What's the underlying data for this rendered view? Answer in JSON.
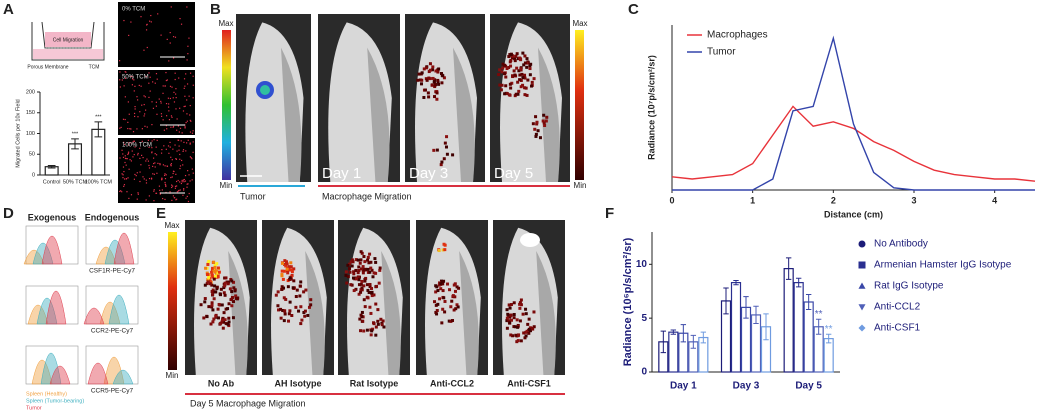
{
  "panels": {
    "letters": [
      "A",
      "B",
      "C",
      "D",
      "E",
      "F"
    ]
  },
  "panel_a": {
    "schematic": [
      "Cell Migration",
      "Porous Membrane",
      "TCM"
    ],
    "images": [
      "0% TCM",
      "50% TCM",
      "100% TCM"
    ]
  },
  "panel_b": {
    "scale": [
      "Max",
      "Min"
    ],
    "days": [
      "Day 1",
      "Day 3",
      "Day 5"
    ],
    "groups": [
      "Tumor",
      "Macrophage Migration"
    ]
  },
  "panel_d": {
    "columns": [
      "Exogenous",
      "Endogenous"
    ],
    "markers": [
      "CSF1R-PE-Cy7",
      "CCR2-PE-Cy7",
      "CCR5-PE-Cy7"
    ],
    "legend": [
      {
        "name": "Spleen (Healthy)",
        "color": "#f0a040"
      },
      {
        "name": "Spleen (Tumor-bearing)",
        "color": "#40b0c0"
      },
      {
        "name": "Tumor",
        "color": "#e04050"
      }
    ]
  },
  "panel_e": {
    "scale": [
      "Max",
      "Min"
    ],
    "groups": [
      "No Ab",
      "AH Isotype",
      "Rat Isotype",
      "Anti-CCL2",
      "Anti-CSF1"
    ],
    "caption": "Day 5 Macrophage Migration"
  },
  "chart_data": [
    {
      "type": "bar",
      "ylabel": "Migrated Cells per 10x Field",
      "categories": [
        "Control",
        "50% TCM",
        "100% TCM"
      ],
      "values": [
        20,
        75,
        110
      ],
      "errors": [
        3,
        12,
        18
      ],
      "value_annotations": [
        null,
        "***",
        "***"
      ],
      "color": "#222222",
      "ylim": [
        0,
        200
      ],
      "yticks": [
        0,
        50,
        100,
        150,
        200
      ]
    },
    {
      "type": "line",
      "xlabel": "Distance (cm)",
      "ylabel": "Radiance (10⁷p/s/cm²/sr)",
      "x": [
        0,
        0.25,
        0.5,
        0.75,
        1,
        1.25,
        1.5,
        1.75,
        2,
        2.25,
        2.5,
        2.75,
        3,
        3.25,
        3.5,
        3.75,
        4,
        4.25,
        4.5
      ],
      "series": [
        {
          "name": "Macrophages",
          "color": "#e8333a",
          "values": [
            0.6,
            0.5,
            0.6,
            0.7,
            1.2,
            2.5,
            3.8,
            2.9,
            3.1,
            2.8,
            2.2,
            1.8,
            1.3,
            0.9,
            0.7,
            0.6,
            0.5,
            0.5,
            0.4
          ]
        },
        {
          "name": "Tumor",
          "color": "#3344aa",
          "values": [
            0,
            0,
            0,
            0,
            0,
            0.5,
            3.6,
            3.8,
            6.9,
            3.0,
            0.8,
            0.1,
            0,
            0,
            0,
            0,
            0,
            0,
            0
          ]
        }
      ],
      "xlim": [
        0,
        4.5
      ],
      "xticks": [
        0,
        1,
        2,
        3,
        4
      ],
      "ylim": [
        0,
        7.5
      ],
      "legend": "top-left"
    },
    {
      "type": "bar",
      "ylabel": "Radiance (10⁶p/s/cm²/sr)",
      "categories": [
        "Day 1",
        "Day 3",
        "Day 5"
      ],
      "series": [
        {
          "name": "No Antibody",
          "color": "#1c1c78",
          "marker": "circle",
          "values": [
            2.8,
            6.6,
            9.6
          ],
          "errors": [
            1.0,
            1.2,
            1.0
          ]
        },
        {
          "name": "Armenian Hamster IgG Isotype",
          "color": "#2a2f90",
          "marker": "square",
          "values": [
            3.7,
            8.3,
            8.3
          ],
          "errors": [
            0.2,
            0.2,
            0.4
          ]
        },
        {
          "name": "Rat IgG Isotype",
          "color": "#3a48a8",
          "marker": "triangle-up",
          "values": [
            3.6,
            6.0,
            6.5
          ],
          "errors": [
            0.8,
            1.0,
            0.7
          ]
        },
        {
          "name": "Anti-CCL2",
          "color": "#5060b8",
          "marker": "triangle-down",
          "values": [
            2.8,
            5.3,
            4.2
          ],
          "errors": [
            0.6,
            0.8,
            0.7
          ],
          "value_annotations": [
            null,
            null,
            "**"
          ]
        },
        {
          "name": "Anti-CSF1",
          "color": "#6f9be0",
          "marker": "diamond",
          "values": [
            3.2,
            4.2,
            3.1
          ],
          "errors": [
            0.5,
            1.2,
            0.4
          ],
          "value_annotations": [
            null,
            null,
            "**"
          ]
        }
      ],
      "ylim": [
        0,
        13
      ],
      "yticks": [
        0,
        5,
        10
      ],
      "legend": "right"
    }
  ]
}
